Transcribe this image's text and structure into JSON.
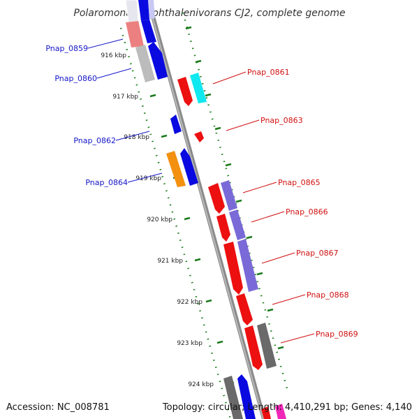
{
  "title": "Polaromonas naphthalenivorans CJ2, complete genome",
  "footer": {
    "accession": "Accession: NC_008781",
    "topology": "Topology: circular; Length: 4,410,291 bp; Genes: 4,140"
  },
  "colors": {
    "backbone": "#8a8a8a",
    "tick": "#1a7a1a",
    "label_blue": "#1414c8",
    "label_red": "#d01010"
  },
  "kbp_labels": [
    "916 kbp",
    "917 kbp",
    "918 kbp",
    "919 kbp",
    "920 kbp",
    "921 kbp",
    "922 kbp",
    "923 kbp",
    "924 kbp"
  ],
  "genes_left": [
    {
      "label": "Pnap_0859"
    },
    {
      "label": "Pnap_0860"
    },
    {
      "label": "Pnap_0862"
    },
    {
      "label": "Pnap_0864"
    }
  ],
  "genes_right": [
    {
      "label": "Pnap_0861"
    },
    {
      "label": "Pnap_0863"
    },
    {
      "label": "Pnap_0865"
    },
    {
      "label": "Pnap_0866"
    },
    {
      "label": "Pnap_0867"
    },
    {
      "label": "Pnap_0868"
    },
    {
      "label": "Pnap_0869"
    }
  ]
}
